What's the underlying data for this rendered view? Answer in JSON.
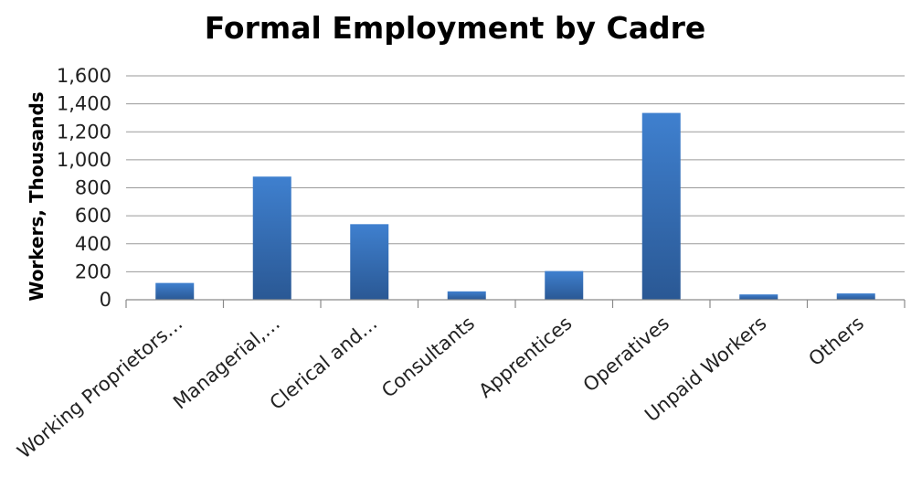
{
  "chart_data": {
    "type": "bar",
    "title": "Formal Employment by Cadre",
    "xlabel": "",
    "ylabel": "Workers, Thousands",
    "categories": [
      "Working Proprietors…",
      "Managerial,…",
      "Clerical and…",
      "Consultants",
      "Apprentices",
      "Operatives",
      "Unpaid Workers",
      "Others"
    ],
    "values": [
      120,
      880,
      540,
      60,
      205,
      1335,
      38,
      45
    ],
    "ylim": [
      0,
      1600
    ],
    "yticks": [
      0,
      200,
      400,
      600,
      800,
      1000,
      1200,
      1400,
      1600
    ],
    "ytick_labels": [
      "0",
      "200",
      "400",
      "600",
      "800",
      "1,000",
      "1,200",
      "1,400",
      "1,600"
    ],
    "grid": true,
    "legend": "none",
    "colors": {
      "bar_top": "#3f80cf",
      "bar_bottom": "#2a5894",
      "grid": "#9a9a9a"
    }
  }
}
